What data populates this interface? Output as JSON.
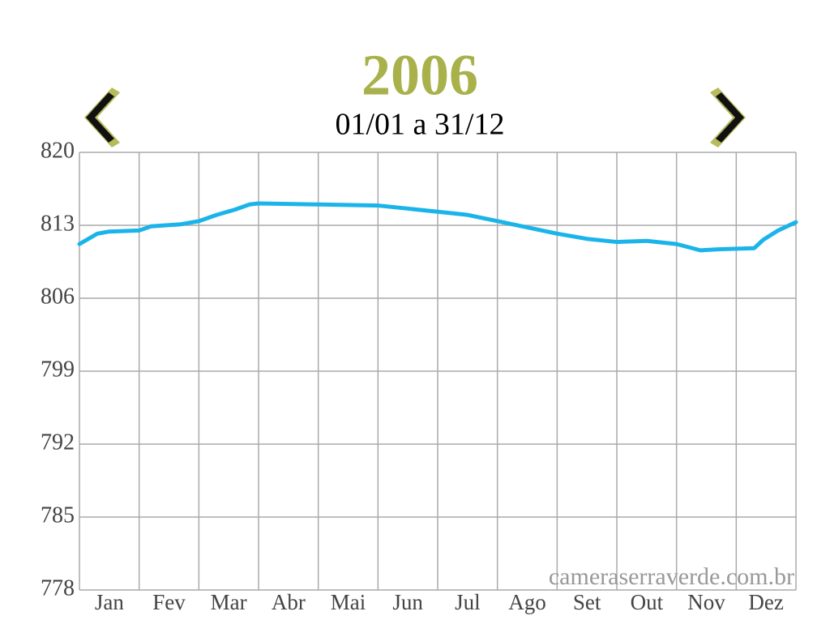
{
  "chart_data": {
    "type": "line",
    "title": "2006",
    "subtitle": "01/01 a 31/12",
    "watermark": "cameraserraverde.com.br",
    "categories": [
      "Jan",
      "Fev",
      "Mar",
      "Abr",
      "Mai",
      "Jun",
      "Jul",
      "Ago",
      "Set",
      "Out",
      "Nov",
      "Dez"
    ],
    "xlim": [
      0,
      12
    ],
    "xticks": [
      0,
      1,
      2,
      3,
      4,
      5,
      6,
      7,
      8,
      9,
      10,
      11,
      12
    ],
    "ylim": [
      778,
      820
    ],
    "yticks": [
      778,
      785,
      792,
      799,
      806,
      813,
      820
    ],
    "grid": true,
    "series": [
      {
        "color": "#1ab4ea",
        "x": [
          0,
          0.3,
          0.5,
          1.0,
          1.2,
          1.7,
          2.0,
          2.3,
          2.6,
          2.85,
          3.0,
          4.0,
          5.0,
          6.0,
          6.5,
          7.0,
          7.5,
          8.0,
          8.5,
          9.0,
          9.5,
          10.0,
          10.4,
          10.7,
          11.3,
          11.45,
          11.7,
          12.0
        ],
        "values": [
          811.2,
          812.2,
          812.4,
          812.5,
          812.9,
          813.1,
          813.4,
          814.0,
          814.5,
          815.0,
          815.1,
          815.0,
          814.9,
          814.3,
          814.0,
          813.4,
          812.8,
          812.2,
          811.7,
          811.4,
          811.5,
          811.2,
          810.6,
          810.7,
          810.8,
          811.6,
          812.5,
          813.3
        ]
      }
    ]
  }
}
